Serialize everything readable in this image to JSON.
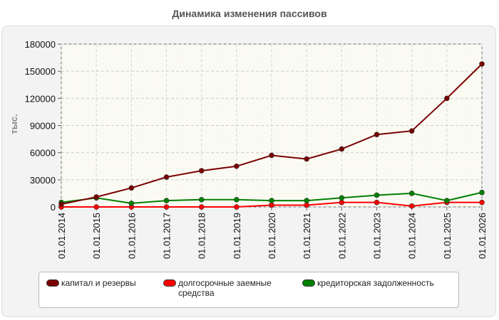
{
  "chart_data": {
    "type": "line",
    "title": "Динамика изменения пассивов",
    "ylabel": "тыс.",
    "xlabel": "",
    "ylim": [
      0,
      180000
    ],
    "yticks": [
      0,
      30000,
      60000,
      90000,
      120000,
      150000,
      180000
    ],
    "categories": [
      "01.01.2014",
      "01.01.2015",
      "01.01.2016",
      "01.01.2017",
      "01.01.2018",
      "01.01.2019",
      "01.01.2020",
      "01.01.2021",
      "01.01.2022",
      "01.01.2023",
      "01.01.2024",
      "01.01.2025",
      "01.01.2026"
    ],
    "grid": true,
    "legend_position": "bottom",
    "series": [
      {
        "name": "капитал и резервы",
        "color": "#7a0000",
        "values": [
          3000,
          11000,
          21000,
          33000,
          40000,
          45000,
          57000,
          53000,
          64000,
          80000,
          84000,
          120000,
          158000
        ]
      },
      {
        "name": "долгосрочные заемные\nсредства",
        "color": "#ff0000",
        "values": [
          0,
          0,
          0,
          0,
          0,
          0,
          2000,
          2000,
          5000,
          5000,
          1000,
          5000,
          5000
        ]
      },
      {
        "name": "кредиторская задолженность",
        "color": "#008000",
        "values": [
          5000,
          10000,
          4000,
          7000,
          8000,
          8000,
          7000,
          7000,
          10000,
          13000,
          15000,
          7000,
          16000
        ]
      }
    ]
  }
}
